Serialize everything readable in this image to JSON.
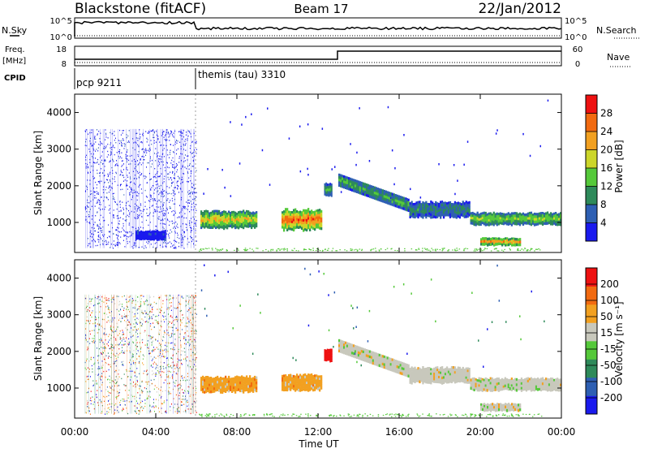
{
  "header": {
    "station": "Blackstone (fitACF)",
    "beam": "Beam 17",
    "date": "22/Jan/2012"
  },
  "top_panels": {
    "nsky_label": "N.Sky",
    "nsky_ticks": [
      "10^5",
      "10^0"
    ],
    "nsearch_label": "N.Search",
    "nsearch_ticks": [
      "10^5",
      "10^0"
    ],
    "freq_label": "Freq.",
    "freq_unit": "[MHz]",
    "freq_ticks": [
      "18",
      "8"
    ],
    "nave_label": "Nave",
    "nave_ticks": [
      "60",
      "0"
    ],
    "cpid_label": "CPID",
    "programs": [
      {
        "name": "pcp 9211",
        "start_hour": 0
      },
      {
        "name": "themis (tau) 3310",
        "start_hour": 6
      }
    ]
  },
  "axes": {
    "y_label": "Slant Range [km]",
    "y_ticks": [
      "1000",
      "2000",
      "3000",
      "4000"
    ],
    "x_label": "Time UT",
    "x_ticks": [
      "00:00",
      "04:00",
      "08:00",
      "12:00",
      "16:00",
      "20:00",
      "00:00"
    ]
  },
  "colors": {
    "power": [
      "#1a1aee",
      "#2e5fb3",
      "#2e8a5a",
      "#55c93a",
      "#ccd62a",
      "#f2a020",
      "#f26a10",
      "#ee1111"
    ],
    "velocity": [
      "#1a1aee",
      "#2e5fb3",
      "#2e8a5a",
      "#55c93a",
      "#c8c8bc",
      "#f2a020",
      "#f26a10",
      "#ee1111"
    ]
  },
  "power_scale": {
    "label": "Power [dB]",
    "ticks": [
      "4",
      "8",
      "12",
      "16",
      "20",
      "24",
      "28"
    ]
  },
  "velocity_scale": {
    "label": "Velocity [m s⁻¹]",
    "ticks": [
      "200",
      "100",
      "50",
      "15",
      "-15",
      "-50",
      "-100",
      "-200"
    ]
  },
  "chart_data": [
    {
      "type": "heatmap",
      "xlabel": "Time UT",
      "ylabel": "Slant Range [km]",
      "colorbar_label": "Power [dB]",
      "xlim": [
        0,
        24
      ],
      "ylim": [
        180,
        4500
      ],
      "colorbar_range": [
        0,
        32
      ],
      "regions": [
        {
          "t0": 0.5,
          "t1": 6.0,
          "r0": 300,
          "r1": 3550,
          "level": 0,
          "kind": "sparse-noise"
        },
        {
          "t0": 3.0,
          "t1": 4.5,
          "r0": 500,
          "r1": 800,
          "level": 0,
          "kind": "blob"
        },
        {
          "t0": 6.2,
          "t1": 9.0,
          "r0": 800,
          "r1": 1350,
          "level": 5,
          "kind": "band"
        },
        {
          "t0": 10.2,
          "t1": 12.2,
          "r0": 750,
          "r1": 1400,
          "level": 7,
          "kind": "blob"
        },
        {
          "t0": 12.3,
          "t1": 12.7,
          "r0": 1700,
          "r1": 2100,
          "level": 3,
          "kind": "patch"
        },
        {
          "t0": 13.0,
          "t1": 16.5,
          "r0": 1200,
          "r1": 2200,
          "level": 3,
          "kind": "arc"
        },
        {
          "t0": 16.5,
          "t1": 19.5,
          "r0": 1100,
          "r1": 1600,
          "level": 2,
          "kind": "band"
        },
        {
          "t0": 19.5,
          "t1": 24.0,
          "r0": 900,
          "r1": 1300,
          "level": 4,
          "kind": "band"
        },
        {
          "t0": 20.0,
          "t1": 22.0,
          "r0": 350,
          "r1": 600,
          "level": 7,
          "kind": "blob"
        }
      ]
    },
    {
      "type": "heatmap",
      "xlabel": "Time UT",
      "ylabel": "Slant Range [km]",
      "colorbar_label": "Velocity [m s⁻¹]",
      "xlim": [
        0,
        24
      ],
      "ylim": [
        180,
        4500
      ],
      "colorbar_range": [
        -250,
        250
      ],
      "regions": [
        {
          "t0": 0.5,
          "t1": 6.0,
          "r0": 300,
          "r1": 3550,
          "level": 0,
          "kind": "sparse-noise"
        },
        {
          "t0": 6.2,
          "t1": 9.0,
          "r0": 850,
          "r1": 1350,
          "level": 5,
          "kind": "band"
        },
        {
          "t0": 10.2,
          "t1": 12.2,
          "r0": 900,
          "r1": 1400,
          "level": 5,
          "kind": "blob"
        },
        {
          "t0": 12.3,
          "t1": 12.7,
          "r0": 1700,
          "r1": 2100,
          "level": 7,
          "kind": "patch"
        },
        {
          "t0": 13.0,
          "t1": 16.5,
          "r0": 1200,
          "r1": 2200,
          "level": 4,
          "kind": "arc"
        },
        {
          "t0": 16.5,
          "t1": 19.5,
          "r0": 1100,
          "r1": 1600,
          "level": 4,
          "kind": "band"
        },
        {
          "t0": 19.5,
          "t1": 24.0,
          "r0": 900,
          "r1": 1300,
          "level": 4,
          "kind": "band"
        },
        {
          "t0": 20.0,
          "t1": 22.0,
          "r0": 350,
          "r1": 600,
          "level": 4,
          "kind": "blob"
        }
      ]
    }
  ]
}
